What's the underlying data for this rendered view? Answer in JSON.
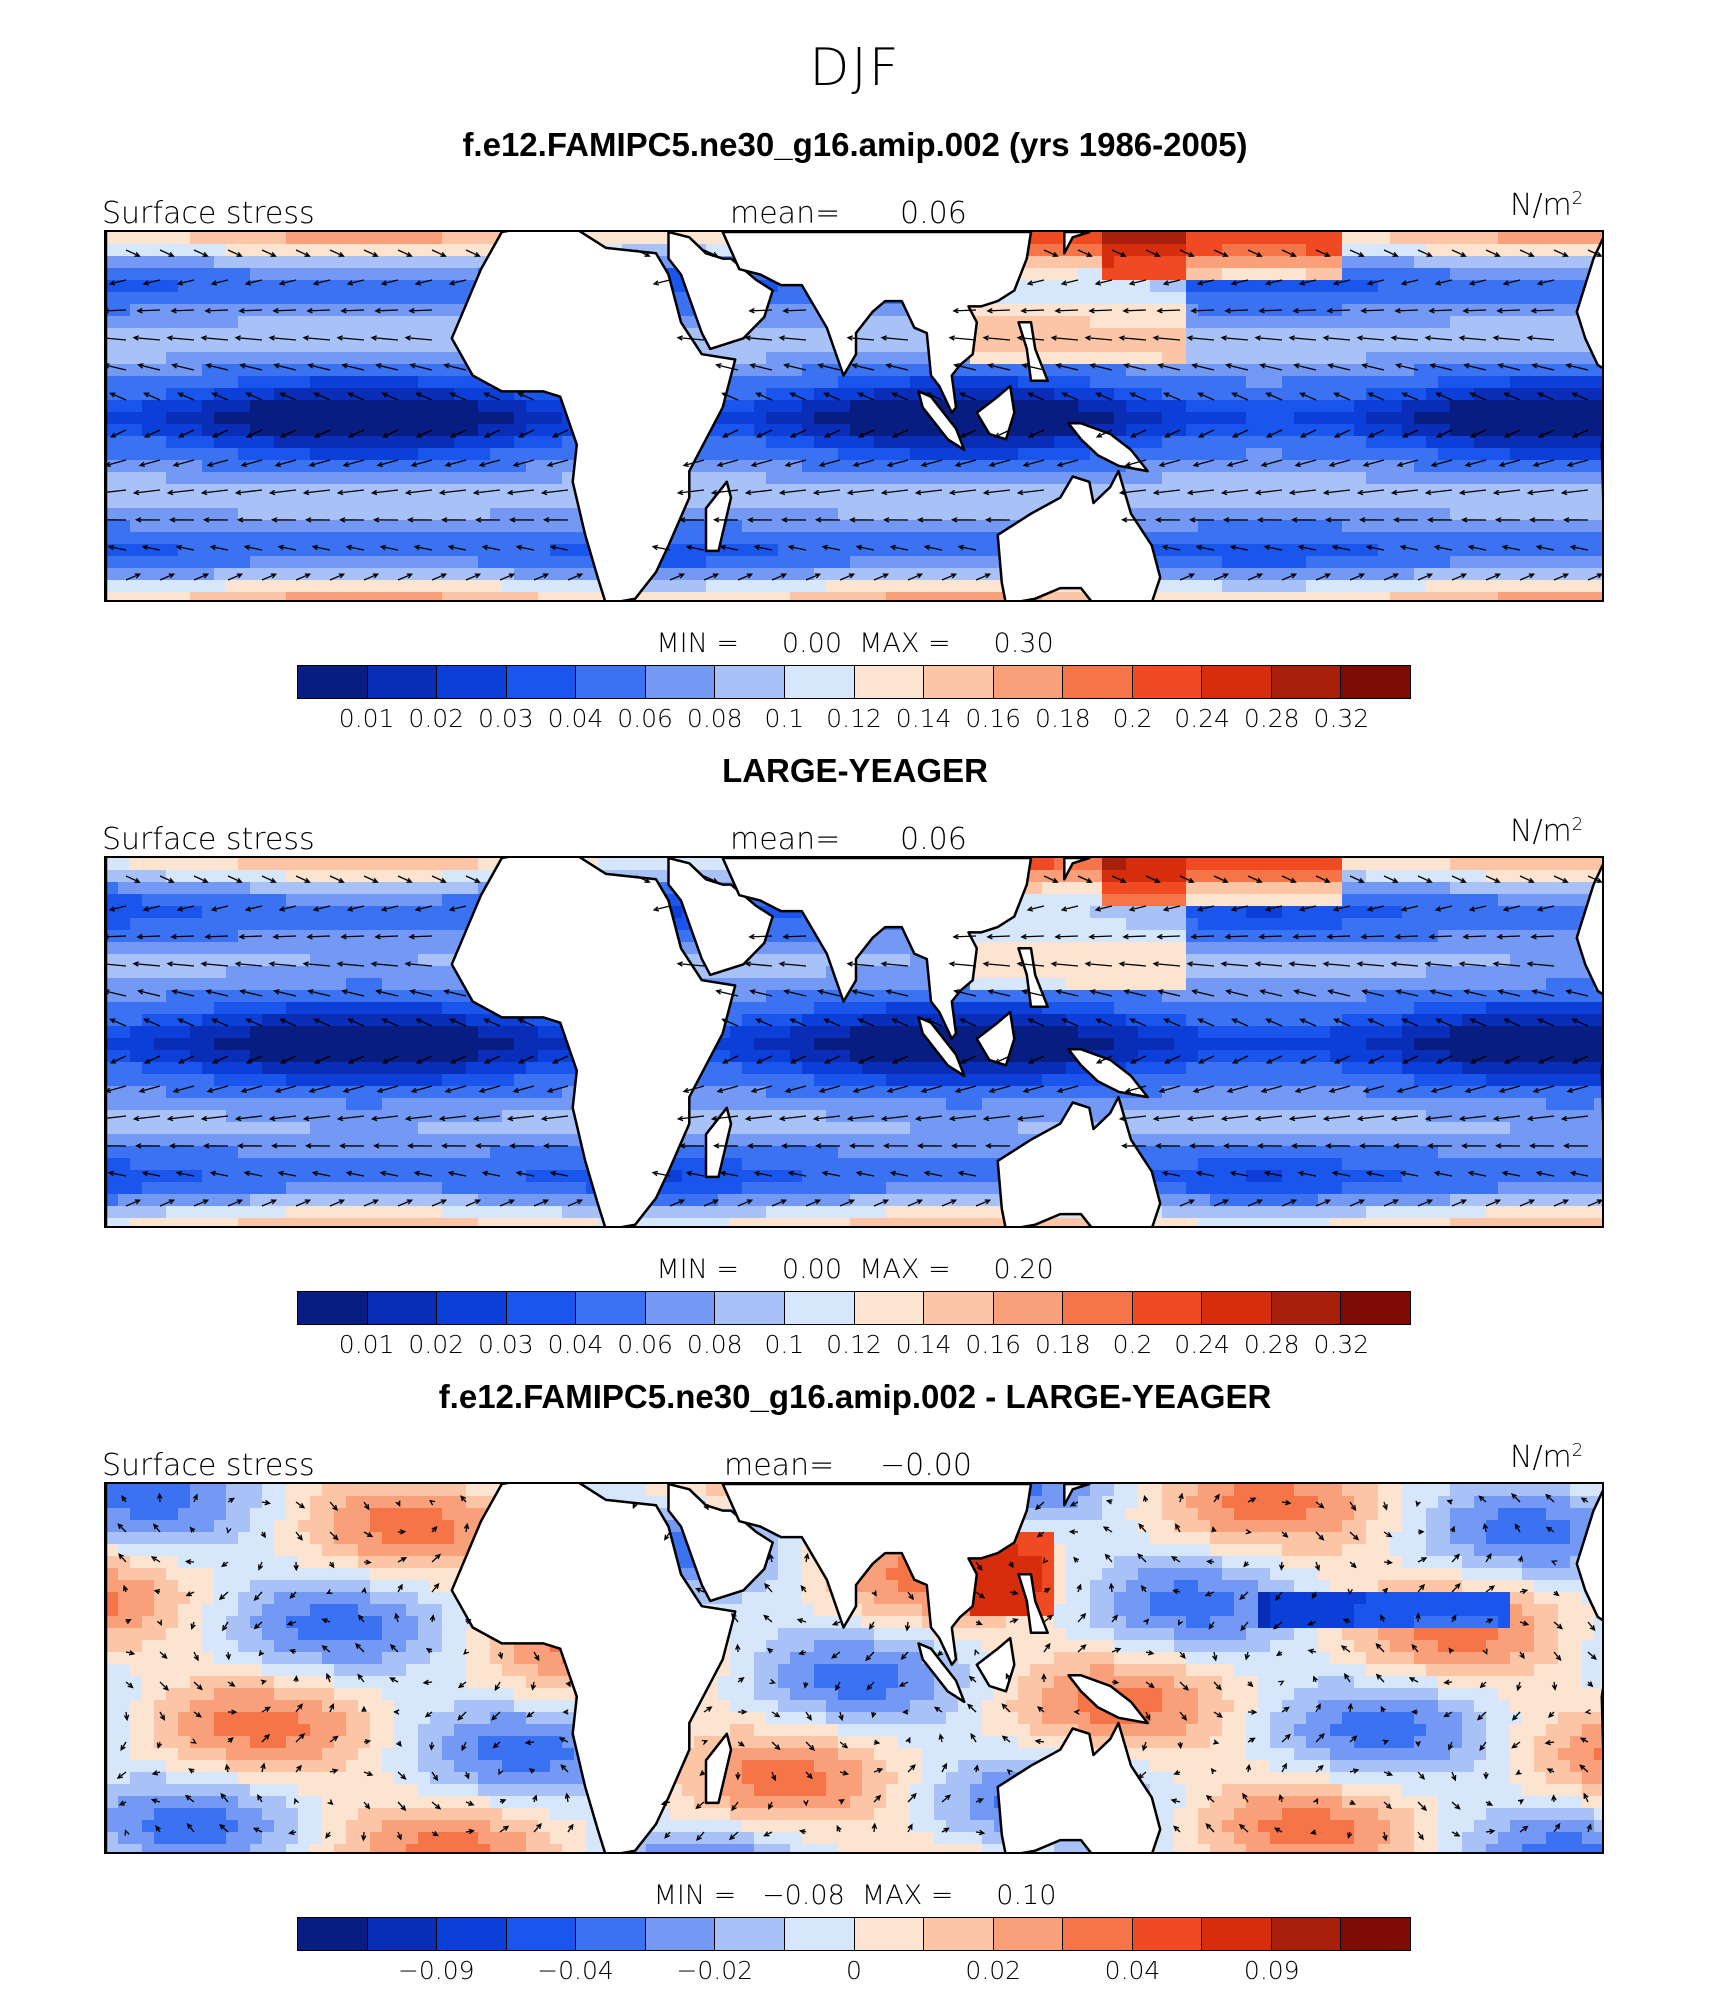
{
  "title": "DJF",
  "colors": [
    "#081d82",
    "#0a2db8",
    "#0b3fd8",
    "#1a56ee",
    "#3a72f2",
    "#7399f5",
    "#a8c2f8",
    "#d6e6fb",
    "#fde4d1",
    "#fbc5a6",
    "#f9a07a",
    "#f57548",
    "#ef4a22",
    "#d62e0c",
    "#a8200c",
    "#7d0d04"
  ],
  "panels": [
    {
      "title": "f.e12.FAMIPC5.ne30_g16.amip.002 (yrs 1986-2005)",
      "left_label": "Surface stress",
      "mean_label": "mean=",
      "mean_value": "0.06",
      "unit": "N/m",
      "unit_sup": "2",
      "minmax": "MIN =     0.00  MAX =     0.30",
      "ticks": [
        "0.01",
        "0.02",
        "0.03",
        "0.04",
        "0.06",
        "0.08",
        "0.1",
        "0.12",
        "0.14",
        "0.16",
        "0.18",
        "0.2",
        "0.24",
        "0.28",
        "0.32"
      ]
    },
    {
      "title": "LARGE-YEAGER",
      "left_label": "Surface stress",
      "mean_label": "mean=",
      "mean_value": "0.06",
      "unit": "N/m",
      "unit_sup": "2",
      "minmax": "MIN =     0.00  MAX =     0.20",
      "ticks": [
        "0.01",
        "0.02",
        "0.03",
        "0.04",
        "0.06",
        "0.08",
        "0.1",
        "0.12",
        "0.14",
        "0.16",
        "0.18",
        "0.2",
        "0.24",
        "0.28",
        "0.32"
      ]
    },
    {
      "title": "f.e12.FAMIPC5.ne30_g16.amip.002 - LARGE-YEAGER",
      "left_label": "Surface stress",
      "mean_label": "mean=",
      "mean_value": "−0.00",
      "unit": "N/m",
      "unit_sup": "2",
      "minmax": "MIN =   −0.08  MAX =     0.10",
      "ticks": [
        "−0.09",
        "−0.04",
        "−0.02",
        "0",
        "0.02",
        "0.04",
        "0.09"
      ]
    }
  ]
}
